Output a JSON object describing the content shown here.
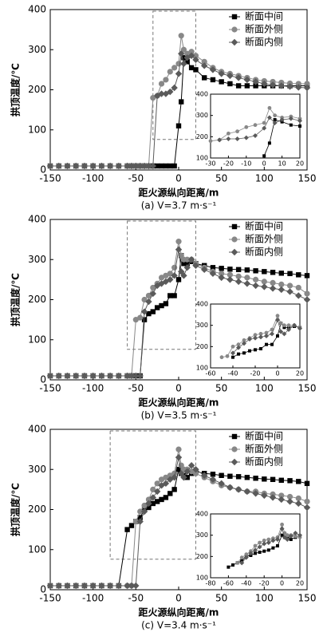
{
  "chart_data": [
    {
      "type": "line",
      "caption": "(a) V=3.7 m·s⁻¹",
      "xlabel": "距火源纵向距离/m",
      "ylabel": "拱顶温度/℃",
      "legend": "upper right",
      "xlim": [
        -150,
        150
      ],
      "ylim": [
        0,
        400
      ],
      "xticks": [
        -150,
        -100,
        -50,
        0,
        50,
        100,
        150
      ],
      "yticks": [
        0,
        100,
        200,
        300,
        400
      ],
      "x": [
        -150,
        -140,
        -130,
        -120,
        -110,
        -100,
        -90,
        -80,
        -70,
        -60,
        -55,
        -50,
        -45,
        -40,
        -35,
        -30,
        -25,
        -20,
        -15,
        -10,
        -5,
        0,
        3,
        6,
        10,
        15,
        20,
        30,
        40,
        50,
        60,
        70,
        80,
        90,
        100,
        110,
        120,
        130,
        140,
        150
      ],
      "series": [
        {
          "name": "断面中间",
          "color": "#000000",
          "marker": "square",
          "values": [
            10,
            10,
            10,
            10,
            10,
            10,
            10,
            10,
            10,
            10,
            10,
            10,
            10,
            10,
            10,
            10,
            10,
            10,
            10,
            10,
            10,
            110,
            170,
            280,
            270,
            255,
            250,
            230,
            225,
            220,
            215,
            210,
            210,
            210,
            210,
            210,
            210,
            210,
            210,
            210
          ]
        },
        {
          "name": "断面外侧",
          "color": "#888888",
          "marker": "circle",
          "values": [
            10,
            10,
            10,
            10,
            10,
            10,
            10,
            10,
            10,
            10,
            10,
            10,
            10,
            10,
            10,
            180,
            185,
            215,
            225,
            245,
            255,
            265,
            335,
            300,
            290,
            295,
            285,
            270,
            255,
            245,
            240,
            235,
            230,
            225,
            222,
            220,
            218,
            216,
            215,
            215
          ]
        },
        {
          "name": "断面内侧",
          "color": "#5a5a5a",
          "marker": "diamond",
          "values": [
            10,
            10,
            10,
            10,
            10,
            10,
            10,
            10,
            10,
            10,
            10,
            10,
            10,
            10,
            10,
            10,
            185,
            190,
            190,
            195,
            205,
            240,
            290,
            265,
            280,
            285,
            275,
            260,
            250,
            240,
            235,
            230,
            225,
            220,
            215,
            212,
            210,
            208,
            206,
            205
          ]
        }
      ],
      "inset": {
        "xlim": [
          -30,
          20
        ],
        "ylim": [
          100,
          400
        ],
        "xticks": [
          -30,
          -20,
          -10,
          0,
          10,
          20
        ],
        "yticks": [
          100,
          200,
          300,
          400
        ]
      }
    },
    {
      "type": "line",
      "caption": "(b) V=3.5 m·s⁻¹",
      "xlabel": "距火源纵向距离/m",
      "ylabel": "拱顶温度/℃",
      "legend": "upper right",
      "xlim": [
        -150,
        150
      ],
      "ylim": [
        0,
        400
      ],
      "xticks": [
        -150,
        -100,
        -50,
        0,
        50,
        100,
        150
      ],
      "yticks": [
        0,
        100,
        200,
        300,
        400
      ],
      "x": [
        -150,
        -140,
        -130,
        -120,
        -110,
        -100,
        -90,
        -80,
        -70,
        -60,
        -55,
        -50,
        -45,
        -40,
        -35,
        -30,
        -25,
        -20,
        -15,
        -10,
        -5,
        0,
        3,
        6,
        10,
        15,
        20,
        30,
        40,
        50,
        60,
        70,
        80,
        90,
        100,
        110,
        120,
        130,
        140,
        150
      ],
      "series": [
        {
          "name": "断面中间",
          "color": "#000000",
          "marker": "square",
          "values": [
            10,
            10,
            10,
            10,
            10,
            10,
            10,
            10,
            10,
            10,
            10,
            10,
            10,
            150,
            165,
            170,
            180,
            185,
            190,
            210,
            210,
            250,
            310,
            290,
            290,
            295,
            290,
            285,
            280,
            278,
            276,
            275,
            274,
            272,
            270,
            268,
            266,
            265,
            262,
            260
          ]
        },
        {
          "name": "断面外侧",
          "color": "#888888",
          "marker": "circle",
          "values": [
            10,
            10,
            10,
            10,
            10,
            10,
            10,
            10,
            10,
            10,
            10,
            150,
            155,
            200,
            210,
            230,
            240,
            255,
            260,
            265,
            280,
            345,
            310,
            300,
            300,
            300,
            290,
            280,
            270,
            265,
            262,
            258,
            255,
            250,
            245,
            242,
            238,
            235,
            230,
            215
          ]
        },
        {
          "name": "断面内侧",
          "color": "#5a5a5a",
          "marker": "diamond",
          "values": [
            10,
            10,
            10,
            10,
            10,
            10,
            10,
            10,
            10,
            10,
            10,
            10,
            10,
            170,
            195,
            215,
            235,
            240,
            245,
            250,
            260,
            325,
            270,
            260,
            280,
            300,
            285,
            275,
            265,
            255,
            250,
            245,
            240,
            235,
            232,
            228,
            225,
            220,
            210,
            200
          ]
        }
      ],
      "inset": {
        "xlim": [
          -60,
          20
        ],
        "ylim": [
          100,
          400
        ],
        "xticks": [
          -60,
          -40,
          -20,
          0,
          20
        ],
        "yticks": [
          100,
          200,
          300,
          400
        ]
      }
    },
    {
      "type": "line",
      "caption": "(c) V=3.4 m·s⁻¹",
      "xlabel": "距火源纵向距离/m",
      "ylabel": "拱顶温度/℃",
      "legend": "upper right",
      "xlim": [
        -150,
        150
      ],
      "ylim": [
        0,
        400
      ],
      "xticks": [
        -150,
        -100,
        -50,
        0,
        50,
        100,
        150
      ],
      "yticks": [
        0,
        100,
        200,
        300,
        400
      ],
      "x": [
        -150,
        -140,
        -130,
        -120,
        -110,
        -100,
        -90,
        -80,
        -70,
        -60,
        -55,
        -50,
        -45,
        -40,
        -35,
        -30,
        -25,
        -20,
        -15,
        -10,
        -5,
        0,
        3,
        6,
        10,
        15,
        20,
        30,
        40,
        50,
        60,
        70,
        80,
        90,
        100,
        110,
        120,
        130,
        140,
        150
      ],
      "series": [
        {
          "name": "断面中间",
          "color": "#000000",
          "marker": "square",
          "values": [
            10,
            10,
            10,
            10,
            10,
            10,
            10,
            10,
            10,
            150,
            160,
            170,
            180,
            200,
            205,
            215,
            220,
            225,
            230,
            240,
            250,
            300,
            290,
            285,
            280,
            290,
            295,
            290,
            288,
            285,
            283,
            282,
            280,
            278,
            276,
            275,
            273,
            272,
            270,
            265
          ]
        },
        {
          "name": "断面外侧",
          "color": "#888888",
          "marker": "circle",
          "values": [
            10,
            10,
            10,
            10,
            10,
            10,
            10,
            10,
            10,
            10,
            10,
            170,
            195,
            210,
            225,
            250,
            265,
            275,
            280,
            285,
            290,
            350,
            310,
            300,
            300,
            295,
            290,
            280,
            270,
            260,
            255,
            250,
            245,
            245,
            240,
            238,
            235,
            232,
            228,
            220
          ]
        },
        {
          "name": "断面内侧",
          "color": "#5a5a5a",
          "marker": "diamond",
          "values": [
            10,
            10,
            10,
            10,
            10,
            10,
            10,
            10,
            10,
            10,
            10,
            10,
            170,
            195,
            215,
            230,
            245,
            260,
            265,
            275,
            280,
            330,
            290,
            280,
            295,
            310,
            300,
            285,
            275,
            265,
            255,
            250,
            245,
            240,
            235,
            230,
            225,
            220,
            215,
            205
          ]
        }
      ],
      "inset": {
        "xlim": [
          -80,
          20
        ],
        "ylim": [
          100,
          400
        ],
        "xticks": [
          -80,
          -60,
          -40,
          -20,
          0,
          20
        ],
        "yticks": [
          100,
          200,
          300,
          400
        ]
      }
    }
  ]
}
